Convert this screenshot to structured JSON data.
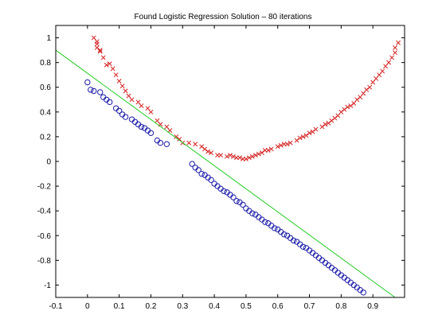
{
  "chart_data": {
    "type": "scatter",
    "title": "Found Logistic Regression Solution – 80 iterations",
    "xlabel": "",
    "ylabel": "",
    "xlim": [
      -0.1,
      1.0
    ],
    "ylim": [
      -1.1,
      1.1
    ],
    "xticks": [
      -0.1,
      0,
      0.1,
      0.2,
      0.3,
      0.4,
      0.5,
      0.6,
      0.7,
      0.8,
      0.9
    ],
    "yticks": [
      -1,
      -0.8,
      -0.6,
      -0.4,
      -0.2,
      0,
      0.2,
      0.4,
      0.6,
      0.8,
      1
    ],
    "grid": false,
    "legend": "none",
    "series": [
      {
        "marker": "x",
        "color": "#d42020",
        "x": [
          0.02,
          0.03,
          0.03,
          0.03,
          0.04,
          0.04,
          0.05,
          0.06,
          0.07,
          0.08,
          0.09,
          0.1,
          0.11,
          0.12,
          0.13,
          0.14,
          0.16,
          0.17,
          0.19,
          0.2,
          0.22,
          0.23,
          0.25,
          0.26,
          0.28,
          0.29,
          0.3,
          0.32,
          0.34,
          0.36,
          0.37,
          0.38,
          0.39,
          0.41,
          0.42,
          0.44,
          0.45,
          0.46,
          0.47,
          0.48,
          0.49,
          0.5,
          0.51,
          0.52,
          0.53,
          0.54,
          0.55,
          0.56,
          0.57,
          0.58,
          0.6,
          0.61,
          0.62,
          0.63,
          0.64,
          0.66,
          0.67,
          0.68,
          0.69,
          0.7,
          0.71,
          0.72,
          0.74,
          0.75,
          0.76,
          0.77,
          0.78,
          0.79,
          0.8,
          0.81,
          0.82,
          0.83,
          0.84,
          0.85,
          0.86,
          0.87,
          0.88,
          0.89,
          0.9,
          0.91,
          0.92,
          0.93,
          0.94,
          0.95,
          0.96,
          0.97,
          0.97,
          0.98
        ],
        "y": [
          1.0,
          0.97,
          0.95,
          0.92,
          0.89,
          0.9,
          0.84,
          0.78,
          0.79,
          0.75,
          0.7,
          0.65,
          0.61,
          0.57,
          0.53,
          0.5,
          0.48,
          0.45,
          0.43,
          0.4,
          0.33,
          0.3,
          0.28,
          0.25,
          0.2,
          0.18,
          0.15,
          0.15,
          0.14,
          0.12,
          0.1,
          0.08,
          0.07,
          0.05,
          0.05,
          0.04,
          0.05,
          0.04,
          0.03,
          0.03,
          0.02,
          0.02,
          0.03,
          0.04,
          0.05,
          0.06,
          0.07,
          0.09,
          0.09,
          0.1,
          0.12,
          0.13,
          0.14,
          0.14,
          0.15,
          0.17,
          0.19,
          0.2,
          0.21,
          0.23,
          0.24,
          0.26,
          0.28,
          0.3,
          0.31,
          0.33,
          0.35,
          0.37,
          0.4,
          0.42,
          0.44,
          0.45,
          0.47,
          0.5,
          0.52,
          0.55,
          0.58,
          0.6,
          0.64,
          0.67,
          0.7,
          0.73,
          0.77,
          0.8,
          0.84,
          0.88,
          0.92,
          0.96
        ]
      },
      {
        "marker": "o",
        "color": "#1c1ca8",
        "x": [
          0.0,
          0.01,
          0.02,
          0.04,
          0.05,
          0.06,
          0.07,
          0.09,
          0.1,
          0.11,
          0.12,
          0.14,
          0.15,
          0.16,
          0.17,
          0.18,
          0.19,
          0.2,
          0.22,
          0.23,
          0.25,
          0.33,
          0.34,
          0.35,
          0.36,
          0.37,
          0.38,
          0.39,
          0.4,
          0.41,
          0.42,
          0.43,
          0.44,
          0.45,
          0.46,
          0.47,
          0.48,
          0.49,
          0.5,
          0.51,
          0.52,
          0.53,
          0.54,
          0.55,
          0.56,
          0.57,
          0.58,
          0.59,
          0.6,
          0.61,
          0.62,
          0.63,
          0.64,
          0.65,
          0.66,
          0.67,
          0.68,
          0.69,
          0.7,
          0.71,
          0.72,
          0.73,
          0.74,
          0.75,
          0.76,
          0.77,
          0.78,
          0.79,
          0.8,
          0.81,
          0.82,
          0.83,
          0.84,
          0.85,
          0.86,
          0.87
        ],
        "y": [
          0.64,
          0.58,
          0.57,
          0.56,
          0.52,
          0.5,
          0.48,
          0.43,
          0.41,
          0.38,
          0.36,
          0.34,
          0.32,
          0.3,
          0.28,
          0.27,
          0.25,
          0.23,
          0.17,
          0.15,
          0.14,
          -0.02,
          -0.05,
          -0.07,
          -0.1,
          -0.11,
          -0.13,
          -0.15,
          -0.18,
          -0.2,
          -0.22,
          -0.24,
          -0.25,
          -0.27,
          -0.29,
          -0.32,
          -0.33,
          -0.35,
          -0.38,
          -0.4,
          -0.42,
          -0.43,
          -0.45,
          -0.47,
          -0.49,
          -0.5,
          -0.52,
          -0.54,
          -0.55,
          -0.57,
          -0.59,
          -0.6,
          -0.62,
          -0.64,
          -0.65,
          -0.67,
          -0.69,
          -0.7,
          -0.72,
          -0.74,
          -0.76,
          -0.78,
          -0.8,
          -0.82,
          -0.84,
          -0.86,
          -0.88,
          -0.9,
          -0.92,
          -0.94,
          -0.96,
          -0.98,
          -1.0,
          -1.02,
          -1.04,
          -1.06
        ]
      }
    ],
    "lines": [
      {
        "color": "#22cc22",
        "x": [
          -0.1,
          0.97
        ],
        "y": [
          0.9,
          -1.1
        ]
      }
    ]
  }
}
